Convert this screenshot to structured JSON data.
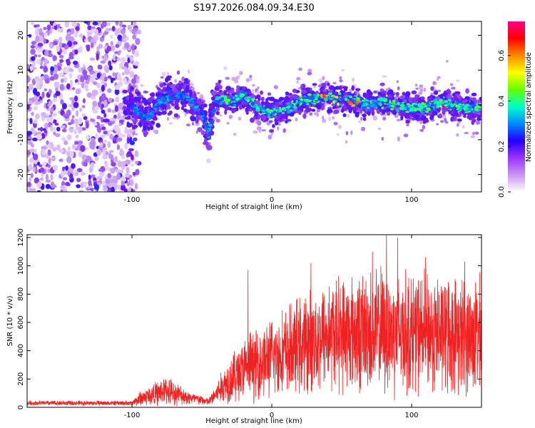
{
  "title": "S197.2026.084.09.34.E30",
  "colors": {
    "background": "#ffffff",
    "axis": "#000000",
    "snr_line": "#ee2222",
    "spectrogram_palette": [
      "#ffffff",
      "#dcc6f3",
      "#a066ee",
      "#6610ee",
      "#2222ff",
      "#00aaff",
      "#00ffaa",
      "#88ff00",
      "#ffee00",
      "#ff6600",
      "#ff0000",
      "#ff0088"
    ]
  },
  "chart_data": [
    {
      "type": "heatmap",
      "name": "spectrogram",
      "title": "S197.2026.084.09.34.E30",
      "xlabel": "Height of straight line (km)",
      "ylabel": "Frequency (Hz)",
      "xlim": [
        -175,
        150
      ],
      "ylim": [
        -25,
        24
      ],
      "xticks": [
        -100,
        0,
        100
      ],
      "yticks": [
        -20,
        -10,
        0,
        10,
        20
      ],
      "ridge": [
        {
          "x": -175,
          "f": -5
        },
        {
          "x": -150,
          "f": -4
        },
        {
          "x": -120,
          "f": -3
        },
        {
          "x": -100,
          "f": 0
        },
        {
          "x": -90,
          "f": -4
        },
        {
          "x": -80,
          "f": 1
        },
        {
          "x": -70,
          "f": 3
        },
        {
          "x": -60,
          "f": 2
        },
        {
          "x": -50,
          "f": -3
        },
        {
          "x": -45,
          "f": -8
        },
        {
          "x": -40,
          "f": 2
        },
        {
          "x": -30,
          "f": 1
        },
        {
          "x": -20,
          "f": 3
        },
        {
          "x": -10,
          "f": -1
        },
        {
          "x": 0,
          "f": -2
        },
        {
          "x": 10,
          "f": -1
        },
        {
          "x": 20,
          "f": 1
        },
        {
          "x": 30,
          "f": 2
        },
        {
          "x": 40,
          "f": 2
        },
        {
          "x": 50,
          "f": 2
        },
        {
          "x": 60,
          "f": 1
        },
        {
          "x": 70,
          "f": 0
        },
        {
          "x": 80,
          "f": 1
        },
        {
          "x": 90,
          "f": 0
        },
        {
          "x": 100,
          "f": -1
        },
        {
          "x": 110,
          "f": -1
        },
        {
          "x": 120,
          "f": 1
        },
        {
          "x": 130,
          "f": 0
        },
        {
          "x": 140,
          "f": -1
        },
        {
          "x": 150,
          "f": -1
        }
      ],
      "colorbar": {
        "label": "Normalized spectral amplitude",
        "range": [
          0,
          0.75
        ],
        "ticks": [
          "0.0",
          "0.2",
          "0.4",
          "0.6"
        ]
      }
    },
    {
      "type": "line",
      "name": "snr",
      "xlabel": "Height of straight line (km)",
      "ylabel": "SNR (10 * v/v)",
      "xlim": [
        -175,
        150
      ],
      "ylim": [
        0,
        1220
      ],
      "xticks": [
        -100,
        0,
        100
      ],
      "yticks": [
        0,
        200,
        400,
        600,
        800,
        1000,
        1200
      ],
      "envelope": [
        {
          "x": -175,
          "mean": 30,
          "spread": 20
        },
        {
          "x": -100,
          "mean": 30,
          "spread": 20
        },
        {
          "x": -95,
          "mean": 60,
          "spread": 60
        },
        {
          "x": -75,
          "mean": 120,
          "spread": 120
        },
        {
          "x": -60,
          "mean": 70,
          "spread": 60
        },
        {
          "x": -45,
          "mean": 40,
          "spread": 30
        },
        {
          "x": -30,
          "mean": 200,
          "spread": 200
        },
        {
          "x": -15,
          "mean": 300,
          "spread": 280
        },
        {
          "x": 0,
          "mean": 350,
          "spread": 320
        },
        {
          "x": 20,
          "mean": 430,
          "spread": 400
        },
        {
          "x": 40,
          "mean": 520,
          "spread": 450
        },
        {
          "x": 80,
          "mean": 540,
          "spread": 520
        },
        {
          "x": 120,
          "mean": 520,
          "spread": 480
        },
        {
          "x": 150,
          "mean": 500,
          "spread": 480
        }
      ],
      "spikes": [
        {
          "x": -17,
          "y": 970
        },
        {
          "x": 28,
          "y": 1020
        },
        {
          "x": 72,
          "y": 1100
        },
        {
          "x": 82,
          "y": 1220
        },
        {
          "x": 90,
          "y": 1200
        },
        {
          "x": 110,
          "y": 1060
        },
        {
          "x": 138,
          "y": 1030
        }
      ]
    }
  ]
}
